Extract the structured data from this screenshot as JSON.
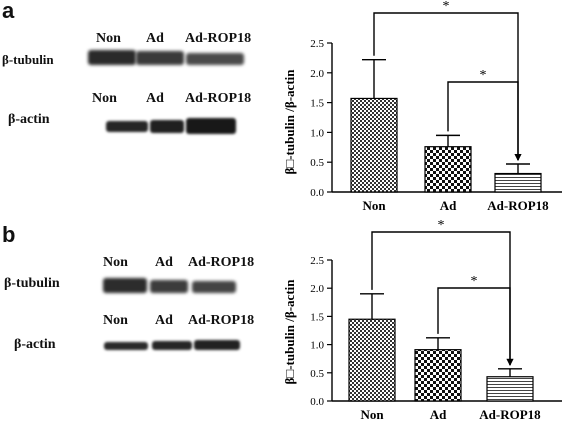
{
  "panels": [
    {
      "letter": "a",
      "blot": {
        "top_lanes": [
          "Non",
          "Ad",
          "Ad-ROP18"
        ],
        "top_protein": "β-tubulin",
        "bottom_lanes": [
          "Non",
          "Ad",
          "Ad-ROP18"
        ],
        "bottom_protein": "β-actin"
      }
    },
    {
      "letter": "b",
      "blot": {
        "top_lanes": [
          "Non",
          "Ad",
          "Ad-ROP18"
        ],
        "top_protein": "β-tubulin",
        "bottom_lanes": [
          "Non",
          "Ad",
          "Ad-ROP18"
        ],
        "bottom_protein": "β-actin"
      }
    }
  ],
  "chart_data": [
    {
      "type": "bar",
      "ylabel": "β□-tubulin /β-actin",
      "categories": [
        "Non",
        "Ad",
        "Ad-ROP18"
      ],
      "values": [
        1.57,
        0.76,
        0.31
      ],
      "errors": [
        0.65,
        0.19,
        0.16
      ],
      "ylim": [
        0,
        2.5
      ],
      "yticks": [
        "0.0",
        "0.5",
        "1.0",
        "1.5",
        "2.0",
        "2.5"
      ],
      "bar_patterns": [
        "dense-checker",
        "checker",
        "horizontal-lines"
      ],
      "significance": [
        {
          "from": "Non",
          "to": "Ad-ROP18",
          "label": "*"
        },
        {
          "from": "Ad",
          "to": "Ad-ROP18",
          "label": "*"
        }
      ]
    },
    {
      "type": "bar",
      "ylabel": "β□-tubulin /β-actin",
      "categories": [
        "Non",
        "Ad",
        "Ad-ROP18"
      ],
      "values": [
        1.45,
        0.91,
        0.43
      ],
      "errors": [
        0.45,
        0.21,
        0.14
      ],
      "ylim": [
        0,
        2.5
      ],
      "yticks": [
        "0.0",
        "0.5",
        "1.0",
        "1.5",
        "2.0",
        "2.5"
      ],
      "bar_patterns": [
        "dense-checker",
        "checker",
        "horizontal-lines"
      ],
      "significance": [
        {
          "from": "Non",
          "to": "Ad-ROP18",
          "label": "*"
        },
        {
          "from": "Ad",
          "to": "Ad-ROP18",
          "label": "*"
        }
      ]
    }
  ]
}
